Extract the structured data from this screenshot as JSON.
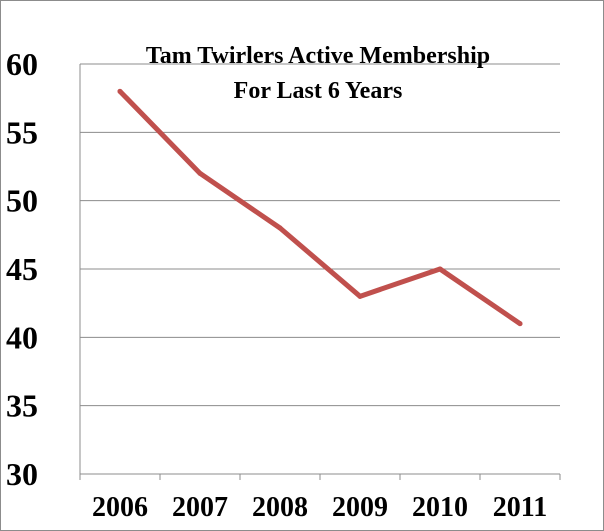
{
  "chart_data": {
    "type": "line",
    "title": "Tam Twirlers Active Membership",
    "subtitle": "For Last 6 Years",
    "categories": [
      "2006",
      "2007",
      "2008",
      "2009",
      "2010",
      "2011"
    ],
    "series": [
      {
        "values": [
          58,
          52,
          48,
          43,
          45,
          41
        ]
      }
    ],
    "ylim": [
      30,
      60
    ],
    "yticks": [
      "30",
      "35",
      "40",
      "45",
      "50",
      "55",
      "60"
    ],
    "grid": true,
    "legend": "none",
    "line_color": "#c0504d",
    "grid_color": "#8c8c8c"
  }
}
